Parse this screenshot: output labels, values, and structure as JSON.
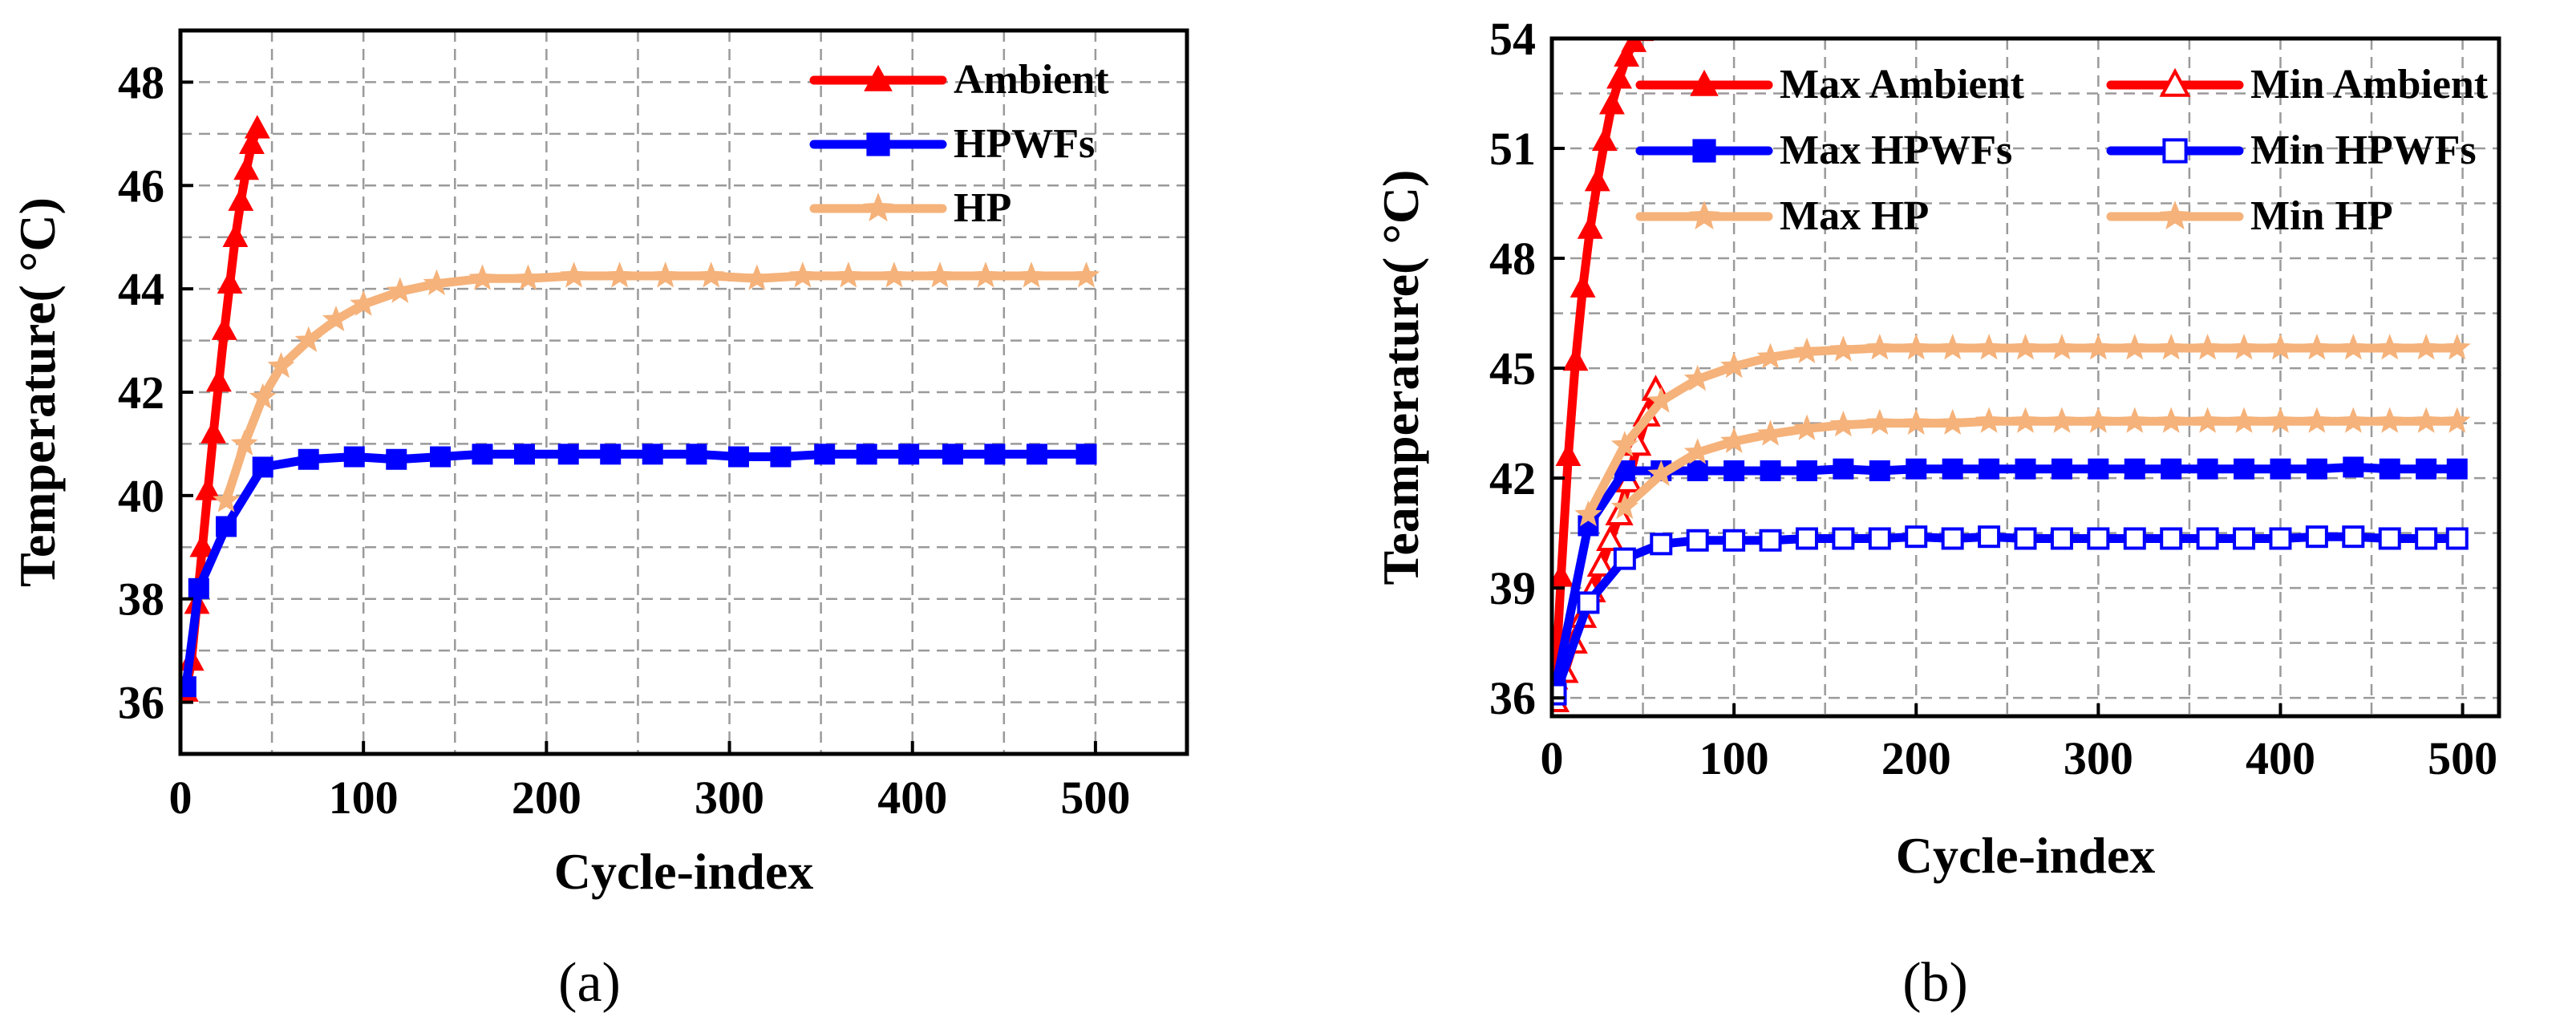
{
  "chart_data": [
    {
      "type": "line",
      "panel": "a",
      "caption": "(a)",
      "xlabel": "Cycle-index",
      "ylabel": "Temperature( °C)",
      "xlim": [
        0,
        550
      ],
      "ylim": [
        35,
        49
      ],
      "xticks": [
        0,
        100,
        200,
        300,
        400,
        500
      ],
      "yticks": [
        36,
        38,
        40,
        42,
        44,
        46,
        48
      ],
      "grid": true,
      "legend": "top-right",
      "series": [
        {
          "name": "Ambient",
          "color": "#ff0000",
          "marker": "triangle",
          "filled": true,
          "x": [
            3,
            6,
            9,
            12,
            15,
            18,
            21,
            24,
            27,
            30,
            33,
            36,
            39,
            42
          ],
          "y": [
            36.2,
            36.8,
            37.9,
            39.0,
            40.1,
            41.2,
            42.2,
            43.2,
            44.1,
            45.0,
            45.7,
            46.3,
            46.8,
            47.1
          ]
        },
        {
          "name": "HPWFs",
          "color": "#0000ff",
          "marker": "square",
          "filled": true,
          "x": [
            3,
            10,
            25,
            45,
            70,
            95,
            118,
            142,
            165,
            188,
            212,
            235,
            258,
            282,
            305,
            328,
            352,
            375,
            398,
            422,
            445,
            468,
            495
          ],
          "y": [
            36.3,
            38.2,
            39.4,
            40.55,
            40.7,
            40.75,
            40.7,
            40.75,
            40.8,
            40.8,
            40.8,
            40.8,
            40.8,
            40.8,
            40.75,
            40.75,
            40.8,
            40.8,
            40.8,
            40.8,
            40.8,
            40.8,
            40.8
          ]
        },
        {
          "name": "HP",
          "color": "#f5b27a",
          "marker": "star",
          "filled": true,
          "x": [
            25,
            35,
            45,
            55,
            70,
            85,
            100,
            120,
            140,
            165,
            190,
            215,
            240,
            265,
            290,
            315,
            340,
            365,
            390,
            415,
            440,
            465,
            495
          ],
          "y": [
            39.9,
            41.0,
            41.9,
            42.5,
            43.0,
            43.4,
            43.7,
            43.95,
            44.1,
            44.2,
            44.2,
            44.25,
            44.25,
            44.25,
            44.25,
            44.2,
            44.25,
            44.25,
            44.25,
            44.25,
            44.25,
            44.25,
            44.25
          ]
        }
      ]
    },
    {
      "type": "line",
      "panel": "b",
      "caption": "(b)",
      "xlabel": "Cycle-index",
      "ylabel": "Teamperature( °C)",
      "xlim": [
        0,
        520
      ],
      "ylim": [
        35.5,
        54
      ],
      "xticks": [
        0,
        100,
        200,
        300,
        400,
        500
      ],
      "yticks": [
        36,
        39,
        42,
        45,
        48,
        51,
        54
      ],
      "grid": true,
      "legend": "top",
      "series": [
        {
          "name": "Max Ambient",
          "color": "#ff0000",
          "marker": "triangle",
          "filled": true,
          "x": [
            2,
            5,
            9,
            13,
            17,
            21,
            25,
            29,
            33,
            37,
            41,
            45,
            49,
            53
          ],
          "y": [
            36.5,
            39.3,
            42.6,
            45.2,
            47.2,
            48.8,
            50.1,
            51.2,
            52.2,
            52.9,
            53.5,
            53.9,
            54.2,
            54.5
          ]
        },
        {
          "name": "Min Ambient",
          "color": "#ff0000",
          "marker": "triangle",
          "filled": false,
          "x": [
            2,
            7,
            12,
            17,
            22,
            27,
            32,
            37,
            42,
            47,
            52,
            57
          ],
          "y": [
            35.9,
            36.7,
            37.5,
            38.2,
            38.9,
            39.6,
            40.3,
            41.0,
            41.9,
            42.9,
            43.7,
            44.4
          ]
        },
        {
          "name": "Max HPWFs",
          "color": "#0000ff",
          "marker": "square",
          "filled": true,
          "x": [
            2,
            20,
            40,
            60,
            80,
            100,
            120,
            140,
            160,
            180,
            200,
            220,
            240,
            260,
            280,
            300,
            320,
            340,
            360,
            380,
            400,
            420,
            440,
            460,
            480,
            497
          ],
          "y": [
            36.3,
            40.7,
            42.2,
            42.2,
            42.2,
            42.2,
            42.2,
            42.2,
            42.25,
            42.2,
            42.25,
            42.25,
            42.25,
            42.25,
            42.25,
            42.25,
            42.25,
            42.25,
            42.25,
            42.25,
            42.25,
            42.25,
            42.3,
            42.25,
            42.25,
            42.25
          ]
        },
        {
          "name": "Min HPWFs",
          "color": "#0000ff",
          "marker": "square",
          "filled": false,
          "x": [
            2,
            20,
            40,
            60,
            80,
            100,
            120,
            140,
            160,
            180,
            200,
            220,
            240,
            260,
            280,
            300,
            320,
            340,
            360,
            380,
            400,
            420,
            440,
            460,
            480,
            497
          ],
          "y": [
            36.1,
            38.6,
            39.8,
            40.2,
            40.3,
            40.3,
            40.3,
            40.35,
            40.35,
            40.35,
            40.4,
            40.35,
            40.4,
            40.35,
            40.35,
            40.35,
            40.35,
            40.35,
            40.35,
            40.35,
            40.35,
            40.4,
            40.4,
            40.35,
            40.35,
            40.35
          ]
        },
        {
          "name": "Max HP",
          "color": "#f5b27a",
          "marker": "star",
          "filled": true,
          "x": [
            20,
            40,
            60,
            80,
            100,
            120,
            140,
            160,
            180,
            200,
            220,
            240,
            260,
            280,
            300,
            320,
            340,
            360,
            380,
            400,
            420,
            440,
            460,
            480,
            497
          ],
          "y": [
            41.0,
            42.9,
            44.1,
            44.7,
            45.05,
            45.3,
            45.45,
            45.5,
            45.55,
            45.55,
            45.55,
            45.55,
            45.55,
            45.55,
            45.55,
            45.55,
            45.55,
            45.55,
            45.55,
            45.55,
            45.55,
            45.55,
            45.55,
            45.55,
            45.55
          ]
        },
        {
          "name": "Min HP",
          "color": "#f5b27a",
          "marker": "star",
          "filled": true,
          "x": [
            40,
            60,
            80,
            100,
            120,
            140,
            160,
            180,
            200,
            220,
            240,
            260,
            280,
            300,
            320,
            340,
            360,
            380,
            400,
            420,
            440,
            460,
            480,
            497
          ],
          "y": [
            41.2,
            42.1,
            42.7,
            43.0,
            43.2,
            43.35,
            43.45,
            43.5,
            43.5,
            43.5,
            43.55,
            43.55,
            43.55,
            43.55,
            43.55,
            43.55,
            43.55,
            43.55,
            43.55,
            43.55,
            43.55,
            43.55,
            43.55,
            43.55
          ]
        }
      ]
    }
  ]
}
